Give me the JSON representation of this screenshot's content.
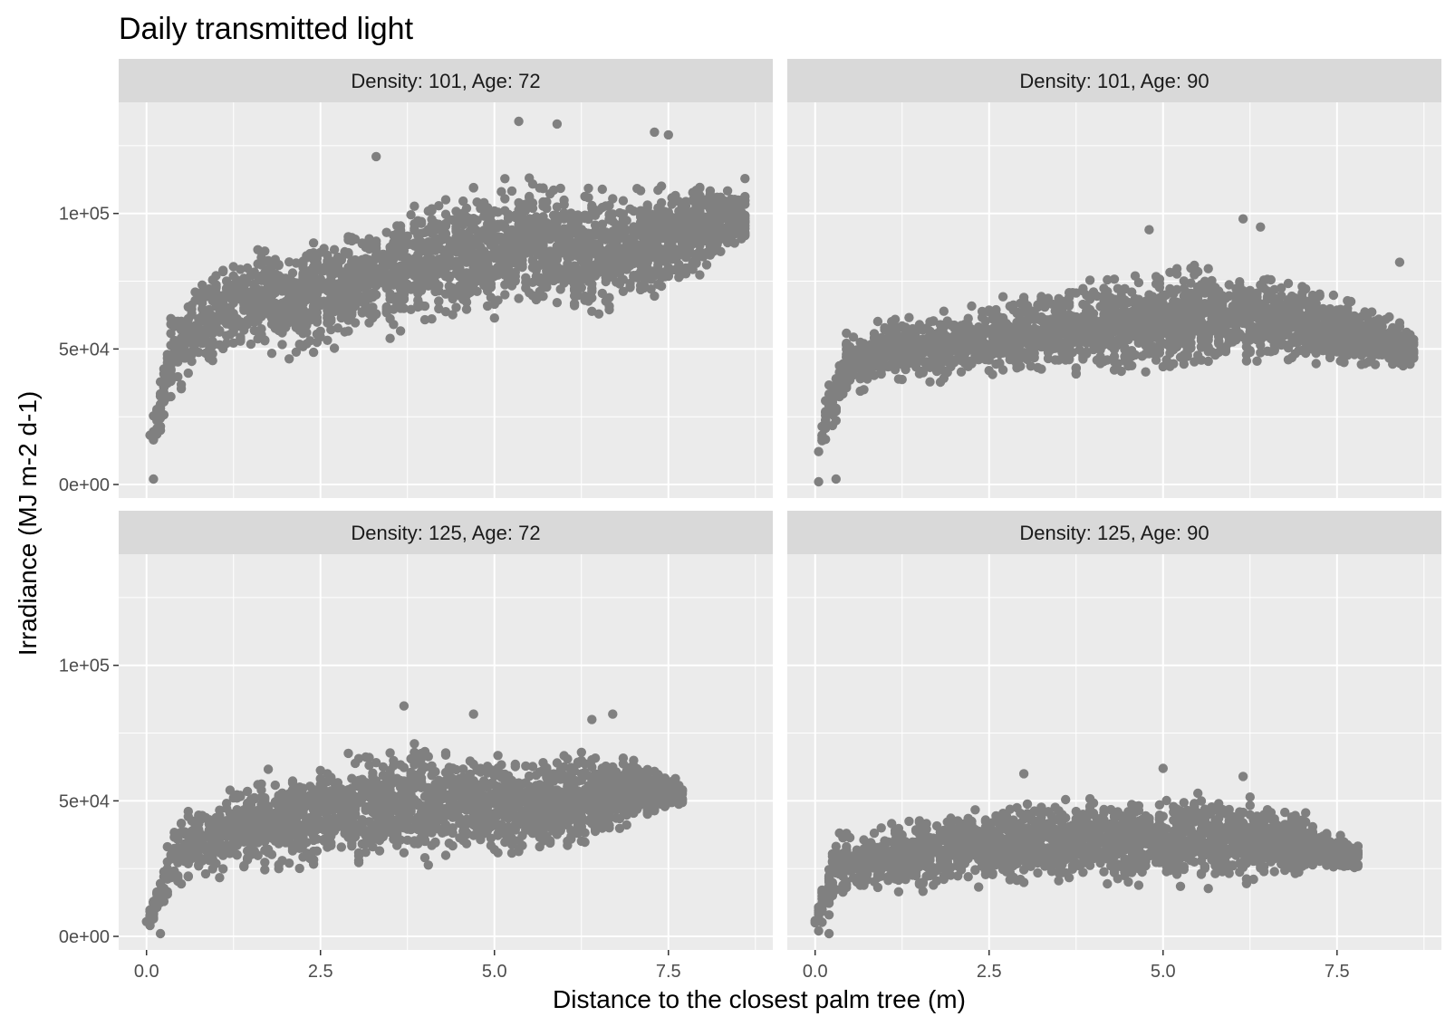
{
  "title": "Daily transmitted light",
  "colors": {
    "panel_bg": "#ebebeb",
    "strip_bg": "#d9d9d9",
    "grid_major": "#ffffff",
    "point": "#808080",
    "tick_text": "#4d4d4d"
  },
  "chart_data": {
    "type": "scatter",
    "title": "Daily transmitted light",
    "xlabel": "Distance to the closest palm tree (m)",
    "ylabel": "Irradiance (MJ m-2 d-1)",
    "xlim": [
      -0.4,
      9.0
    ],
    "ylim": [
      -5000,
      141000
    ],
    "x_ticks": [
      0,
      2.5,
      5,
      7.5
    ],
    "x_tick_labels": [
      "0.0",
      "2.5",
      "5.0",
      "7.5"
    ],
    "y_ticks": [
      0,
      50000,
      100000
    ],
    "y_tick_labels": [
      "0e+00",
      "5e+04",
      "1e+05"
    ],
    "grid": true,
    "legend": "none",
    "facets": [
      {
        "label": "Density: 101, Age: 72",
        "x_range": [
          0.05,
          8.6
        ],
        "band": [
          [
            0.1,
            10000,
            28000
          ],
          [
            0.4,
            30000,
            70000
          ],
          [
            1.0,
            40000,
            88000
          ],
          [
            2.5,
            45000,
            95000
          ],
          [
            4.0,
            55000,
            110000
          ],
          [
            5.5,
            60000,
            118000
          ],
          [
            7.0,
            58000,
            112000
          ],
          [
            8.6,
            85000,
            115000
          ]
        ],
        "n_points": 2400,
        "outliers": [
          [
            5.35,
            134000
          ],
          [
            5.9,
            133000
          ],
          [
            7.3,
            130000
          ],
          [
            7.5,
            129000
          ],
          [
            3.3,
            121000
          ],
          [
            0.1,
            2000
          ],
          [
            0.2,
            20000
          ]
        ]
      },
      {
        "label": "Density: 101, Age: 90",
        "x_range": [
          0.05,
          8.6
        ],
        "band": [
          [
            0.1,
            5000,
            30000
          ],
          [
            0.4,
            28000,
            58000
          ],
          [
            1.0,
            35000,
            63000
          ],
          [
            2.5,
            37000,
            70000
          ],
          [
            4.0,
            38000,
            78000
          ],
          [
            5.5,
            40000,
            85000
          ],
          [
            7.0,
            42000,
            78000
          ],
          [
            8.6,
            40000,
            60000
          ]
        ],
        "n_points": 2200,
        "outliers": [
          [
            6.15,
            98000
          ],
          [
            6.4,
            95000
          ],
          [
            4.8,
            94000
          ],
          [
            8.4,
            82000
          ],
          [
            0.05,
            1000
          ],
          [
            0.3,
            2000
          ]
        ]
      },
      {
        "label": "Density: 125, Age: 72",
        "x_range": [
          0.0,
          7.7
        ],
        "band": [
          [
            0.0,
            1000,
            8000
          ],
          [
            0.4,
            15000,
            45000
          ],
          [
            1.0,
            18000,
            58000
          ],
          [
            2.5,
            22000,
            68000
          ],
          [
            4.0,
            25000,
            76000
          ],
          [
            5.5,
            25000,
            70000
          ],
          [
            7.0,
            38000,
            68000
          ],
          [
            7.7,
            48000,
            58000
          ]
        ],
        "n_points": 2100,
        "outliers": [
          [
            3.7,
            85000
          ],
          [
            4.7,
            82000
          ],
          [
            6.7,
            82000
          ],
          [
            6.4,
            80000
          ],
          [
            0.05,
            4000
          ],
          [
            0.2,
            1000
          ]
        ]
      },
      {
        "label": "Density: 125, Age: 90",
        "x_range": [
          0.0,
          7.8
        ],
        "band": [
          [
            0.0,
            1000,
            10000
          ],
          [
            0.3,
            10000,
            42000
          ],
          [
            1.0,
            14000,
            44000
          ],
          [
            2.5,
            16000,
            50000
          ],
          [
            4.0,
            16000,
            55000
          ],
          [
            5.5,
            16000,
            56000
          ],
          [
            7.0,
            20000,
            48000
          ],
          [
            7.8,
            24000,
            34000
          ]
        ],
        "n_points": 2000,
        "outliers": [
          [
            5.0,
            62000
          ],
          [
            3.0,
            60000
          ],
          [
            6.15,
            59000
          ],
          [
            7.6,
            28000
          ],
          [
            0.05,
            2000
          ],
          [
            0.2,
            1000
          ]
        ]
      }
    ]
  }
}
